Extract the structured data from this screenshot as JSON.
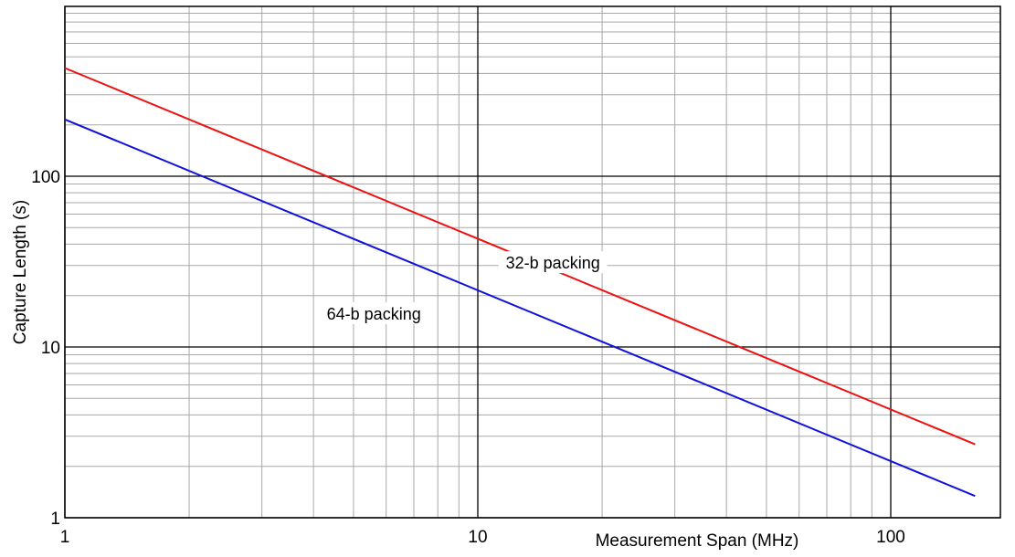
{
  "chart_data": {
    "type": "line",
    "xlabel": "Measurement Span (MHz)",
    "ylabel": "Capture Length (s)",
    "xscale": "log",
    "yscale": "log",
    "xlim": [
      1,
      200
    ],
    "ylim": [
      1,
      1000
    ],
    "grid": true,
    "x_ticks": [
      1,
      10,
      100
    ],
    "x_tick_labels": [
      "1",
      "10",
      "100"
    ],
    "y_ticks": [
      1,
      10,
      100
    ],
    "y_tick_labels": [
      "1",
      "10",
      "100"
    ],
    "series": [
      {
        "color": "#ee1111",
        "x": [
          1,
          160
        ],
        "y": [
          430,
          2.69
        ]
      },
      {
        "color": "#1111dd",
        "x": [
          1,
          160
        ],
        "y": [
          215,
          1.34
        ]
      }
    ],
    "annotations": [
      {
        "text": "32-b packing",
        "x": 15.2,
        "y": 31,
        "series": 0
      },
      {
        "text": "64-b packing",
        "x": 5.6,
        "y": 15.6,
        "series": 1
      }
    ]
  }
}
